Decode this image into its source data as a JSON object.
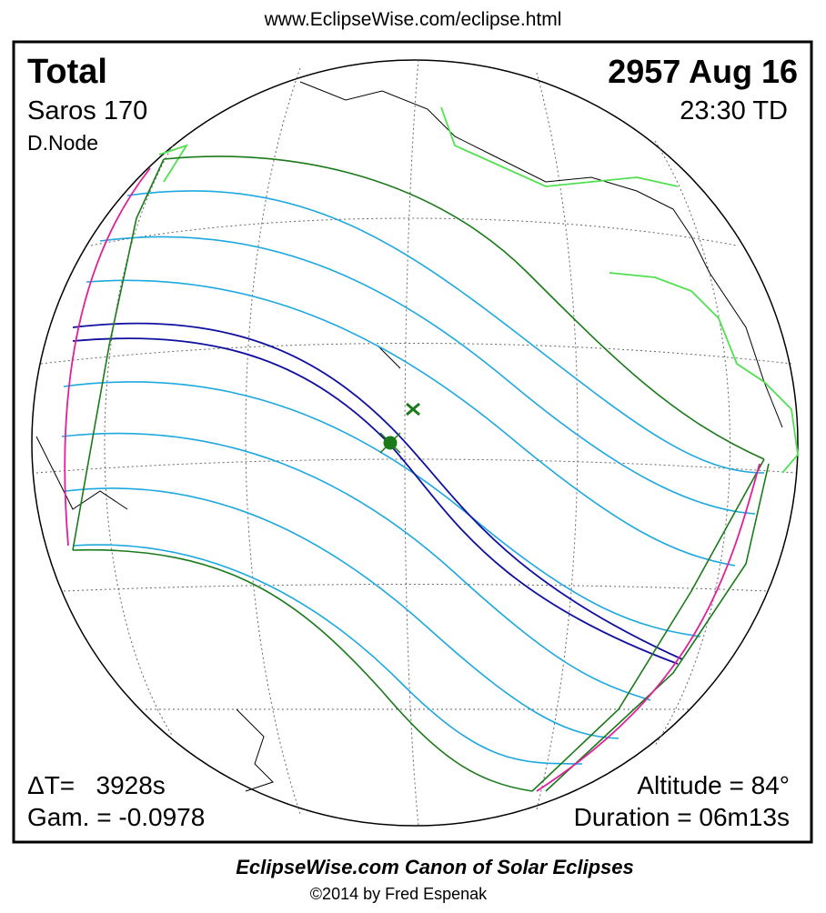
{
  "header": {
    "url": "www.EclipseWise.com/eclipse.html"
  },
  "eclipse": {
    "type": "Total",
    "saros": "Saros 170",
    "node": "D.Node",
    "date": "2957 Aug 16",
    "time": "23:30 TD",
    "delta_t": "ΔT=   3928s",
    "gamma": "Gam. = -0.0978",
    "altitude": "Altitude = 84°",
    "duration": "Duration = 06m13s"
  },
  "footer": {
    "title": "EclipseWise.com Canon of Solar Eclipses",
    "credit": "©2014 by Fred Espenak"
  }
}
